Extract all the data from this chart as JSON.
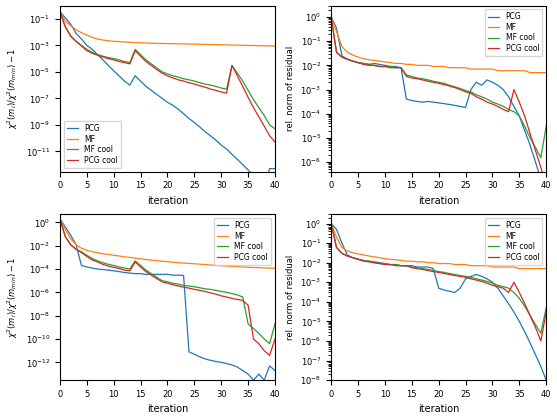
{
  "colors": {
    "PCG": "#1f77b4",
    "MF": "#ff7f0e",
    "MF cool": "#2ca02c",
    "PCG cool": "#d62728"
  },
  "xlim": [
    0,
    40
  ],
  "xlabel": "iteration",
  "xticks": [
    0,
    5,
    10,
    15,
    20,
    25,
    30,
    35,
    40
  ],
  "ylabel_left": "$\\chi^2(m_i)/\\chi^2(m_{min}) - 1$",
  "ylabel_right": "rel. norm of residual",
  "legend_labels": [
    "PCG",
    "MF",
    "MF cool",
    "PCG cool"
  ],
  "tl_ylim": [
    3e-13,
    1.0
  ],
  "tr_ylim": [
    4e-07,
    3.0
  ],
  "bl_ylim": [
    3e-14,
    5.0
  ],
  "br_ylim": [
    1e-08,
    3.0
  ],
  "tl_pcg": [
    0.35,
    0.12,
    0.04,
    0.008,
    0.003,
    0.001,
    0.0005,
    0.0002,
    8e-05,
    3e-05,
    1.2e-05,
    5e-06,
    2e-06,
    1e-06,
    5e-06,
    2e-06,
    8e-07,
    4e-07,
    2e-07,
    1e-07,
    5e-08,
    3e-08,
    1.5e-08,
    7e-09,
    3e-09,
    1.5e-09,
    7e-10,
    3e-10,
    1.5e-10,
    7e-11,
    3e-11,
    1.5e-11,
    6e-12,
    2.5e-12,
    1e-12,
    4e-13,
    1.5e-13,
    6e-14,
    2.5e-14,
    5e-13,
    5e-13
  ],
  "tl_mf": [
    0.35,
    0.07,
    0.03,
    0.015,
    0.009,
    0.006,
    0.004,
    0.003,
    0.0025,
    0.0022,
    0.002,
    0.0019,
    0.0018,
    0.0017,
    0.0016,
    0.00155,
    0.0015,
    0.00145,
    0.0014,
    0.00138,
    0.00135,
    0.00133,
    0.0013,
    0.00128,
    0.00125,
    0.00123,
    0.0012,
    0.00118,
    0.00115,
    0.00113,
    0.0011,
    0.00108,
    0.00105,
    0.00103,
    0.001,
    0.00098,
    0.00096,
    0.00094,
    0.00092,
    0.0009,
    0.00088
  ],
  "tl_mfcool": [
    0.35,
    0.025,
    0.005,
    0.002,
    0.001,
    0.0005,
    0.0003,
    0.0002,
    0.00015,
    0.00012,
    0.0001,
    8e-05,
    6e-05,
    5e-05,
    0.0005,
    0.0002,
    8e-05,
    4e-05,
    2e-05,
    1e-05,
    7e-06,
    5e-06,
    4e-06,
    3e-06,
    2.5e-06,
    2e-06,
    1.5e-06,
    1.2e-06,
    1e-06,
    8e-07,
    6e-07,
    5e-07,
    3e-05,
    8e-06,
    2e-06,
    4e-07,
    8e-08,
    2e-08,
    5e-09,
    1e-09,
    5e-10
  ],
  "tl_pcgcool": [
    0.35,
    0.025,
    0.005,
    0.002,
    0.0009,
    0.0004,
    0.00025,
    0.00018,
    0.00013,
    0.0001,
    8e-05,
    6e-05,
    5e-05,
    4e-05,
    0.0004,
    0.00015,
    6e-05,
    3e-05,
    1.5e-05,
    8e-06,
    5e-06,
    3.5e-06,
    2.5e-06,
    2e-06,
    1.5e-06,
    1.2e-06,
    9e-07,
    7e-07,
    5e-07,
    4e-07,
    3e-07,
    2.5e-07,
    3e-05,
    5e-06,
    8e-07,
    1.2e-07,
    2e-08,
    4e-09,
    8e-10,
    1.5e-10,
    5e-11
  ],
  "tr_pcg": [
    1.0,
    0.35,
    0.025,
    0.018,
    0.015,
    0.013,
    0.012,
    0.011,
    0.012,
    0.011,
    0.01,
    0.009,
    0.009,
    0.008,
    0.0004,
    0.00035,
    0.00032,
    0.0003,
    0.00032,
    0.0003,
    0.00028,
    0.00026,
    0.00024,
    0.00022,
    0.0002,
    0.00018,
    0.001,
    0.002,
    0.0015,
    0.0025,
    0.002,
    0.0015,
    0.001,
    0.0005,
    0.0002,
    8e-05,
    2e-05,
    5e-06,
    1e-06,
    2e-07,
    4e-08
  ],
  "tr_mf": [
    1.0,
    0.25,
    0.06,
    0.035,
    0.027,
    0.022,
    0.019,
    0.017,
    0.016,
    0.015,
    0.014,
    0.013,
    0.012,
    0.012,
    0.011,
    0.011,
    0.01,
    0.01,
    0.01,
    0.009,
    0.009,
    0.009,
    0.008,
    0.008,
    0.008,
    0.008,
    0.007,
    0.007,
    0.007,
    0.007,
    0.007,
    0.006,
    0.006,
    0.006,
    0.006,
    0.006,
    0.006,
    0.005,
    0.005,
    0.005,
    0.005
  ],
  "tr_mfcool": [
    1.0,
    0.035,
    0.022,
    0.018,
    0.015,
    0.013,
    0.012,
    0.011,
    0.01,
    0.009,
    0.009,
    0.009,
    0.008,
    0.008,
    0.004,
    0.0035,
    0.003,
    0.0028,
    0.0025,
    0.0022,
    0.002,
    0.0018,
    0.0015,
    0.0013,
    0.0011,
    0.0009,
    0.0008,
    0.0006,
    0.0005,
    0.0004,
    0.0003,
    0.00025,
    0.0002,
    0.00015,
    0.00012,
    8e-05,
    3e-05,
    1e-05,
    4e-06,
    1.5e-06,
    3e-05
  ],
  "tr_pcgcool": [
    1.0,
    0.035,
    0.022,
    0.018,
    0.015,
    0.013,
    0.011,
    0.01,
    0.01,
    0.009,
    0.009,
    0.008,
    0.008,
    0.008,
    0.0035,
    0.003,
    0.0028,
    0.0025,
    0.0022,
    0.002,
    0.0018,
    0.0016,
    0.0014,
    0.0012,
    0.001,
    0.0008,
    0.0007,
    0.0005,
    0.0004,
    0.0003,
    0.00025,
    0.0002,
    0.00015,
    0.00012,
    0.001,
    0.0003,
    8e-05,
    1.5e-05,
    3e-06,
    6e-07,
    1e-07
  ],
  "bl_pcg": [
    2.0,
    0.4,
    0.08,
    0.012,
    0.0002,
    0.00015,
    0.00012,
    0.0001,
    9e-05,
    8e-05,
    7e-05,
    6e-05,
    5e-05,
    4.5e-05,
    4e-05,
    4e-05,
    3.5e-05,
    3.5e-05,
    3.5e-05,
    3.5e-05,
    3.5e-05,
    3e-05,
    3e-05,
    2.8e-05,
    8e-12,
    5e-12,
    3e-12,
    2e-12,
    1.5e-12,
    1.2e-12,
    1e-12,
    8e-13,
    6e-13,
    4e-13,
    2e-13,
    1e-13,
    3e-14,
    1e-13,
    3e-14,
    5e-13,
    2e-13
  ],
  "bl_mf": [
    2.0,
    0.25,
    0.04,
    0.012,
    0.006,
    0.004,
    0.003,
    0.0025,
    0.002,
    0.0018,
    0.0015,
    0.0013,
    0.0011,
    0.001,
    0.00085,
    0.00075,
    0.00065,
    0.00058,
    0.00052,
    0.00047,
    0.00042,
    0.00038,
    0.00035,
    0.00032,
    0.0003,
    0.00028,
    0.00026,
    0.00024,
    0.00022,
    0.00021,
    0.00019,
    0.00018,
    0.00017,
    0.00016,
    0.00015,
    0.00014,
    0.000135,
    0.00013,
    0.000125,
    0.00012,
    0.000115
  ],
  "bl_mfcool": [
    2.0,
    0.06,
    0.012,
    0.005,
    0.003,
    0.0015,
    0.0008,
    0.0005,
    0.00035,
    0.00025,
    0.0002,
    0.00015,
    0.00012,
    0.0001,
    0.0005,
    0.0002,
    8e-05,
    4e-05,
    2e-05,
    1e-05,
    8e-06,
    6e-06,
    5e-06,
    4e-06,
    3.5e-06,
    3e-06,
    2.5e-06,
    2e-06,
    1.8e-06,
    1.5e-06,
    1.2e-06,
    1e-06,
    8e-07,
    6e-07,
    4e-07,
    2e-09,
    8e-10,
    3e-10,
    1e-10,
    4e-11,
    2e-09
  ],
  "bl_pcgcool": [
    2.0,
    0.06,
    0.012,
    0.005,
    0.0025,
    0.0012,
    0.0006,
    0.0004,
    0.00025,
    0.00018,
    0.00014,
    0.00011,
    8e-05,
    7e-05,
    0.0004,
    0.00015,
    6e-05,
    3e-05,
    1.5e-05,
    8e-06,
    6e-06,
    4.5e-06,
    3.5e-06,
    2.8e-06,
    2.3e-06,
    1.8e-06,
    1.5e-06,
    1.2e-06,
    9e-07,
    7e-07,
    5e-07,
    4e-07,
    3e-07,
    2.5e-07,
    2e-07,
    8e-08,
    1e-10,
    4e-11,
    1e-11,
    4e-12,
    1e-10
  ],
  "br_pcg": [
    1.0,
    0.5,
    0.1,
    0.025,
    0.018,
    0.015,
    0.013,
    0.012,
    0.011,
    0.01,
    0.009,
    0.008,
    0.008,
    0.007,
    0.007,
    0.007,
    0.006,
    0.006,
    0.006,
    0.005,
    0.0005,
    0.0004,
    0.00035,
    0.0003,
    0.0005,
    0.0015,
    0.002,
    0.0025,
    0.002,
    0.0015,
    0.001,
    0.0005,
    0.0002,
    8e-05,
    3e-05,
    1e-05,
    3e-06,
    8e-07,
    2e-07,
    5e-08,
    1e-08
  ],
  "br_mf": [
    1.0,
    0.2,
    0.06,
    0.04,
    0.032,
    0.028,
    0.025,
    0.022,
    0.02,
    0.018,
    0.016,
    0.015,
    0.014,
    0.013,
    0.012,
    0.012,
    0.011,
    0.011,
    0.01,
    0.01,
    0.009,
    0.009,
    0.009,
    0.008,
    0.008,
    0.008,
    0.007,
    0.007,
    0.007,
    0.007,
    0.006,
    0.006,
    0.006,
    0.006,
    0.006,
    0.005,
    0.005,
    0.005,
    0.005,
    0.005,
    0.005
  ],
  "br_mfcool": [
    1.0,
    0.06,
    0.03,
    0.022,
    0.018,
    0.015,
    0.013,
    0.012,
    0.01,
    0.009,
    0.009,
    0.008,
    0.008,
    0.007,
    0.007,
    0.006,
    0.0055,
    0.005,
    0.0045,
    0.004,
    0.0035,
    0.0032,
    0.0028,
    0.0025,
    0.0022,
    0.002,
    0.0018,
    0.0015,
    0.0013,
    0.0011,
    0.0009,
    0.0007,
    0.0006,
    0.0005,
    0.0003,
    0.00015,
    6e-05,
    2e-05,
    7e-06,
    2.5e-06,
    5e-05
  ],
  "br_pcgcool": [
    1.0,
    0.06,
    0.03,
    0.022,
    0.018,
    0.015,
    0.012,
    0.011,
    0.01,
    0.009,
    0.008,
    0.008,
    0.007,
    0.007,
    0.007,
    0.0055,
    0.005,
    0.0045,
    0.004,
    0.0035,
    0.0032,
    0.0028,
    0.0025,
    0.0022,
    0.002,
    0.0018,
    0.0015,
    0.0013,
    0.0011,
    0.0009,
    0.0007,
    0.0006,
    0.0005,
    0.0003,
    0.001,
    0.0003,
    8e-05,
    2e-05,
    5e-06,
    1e-06,
    3e-05
  ]
}
